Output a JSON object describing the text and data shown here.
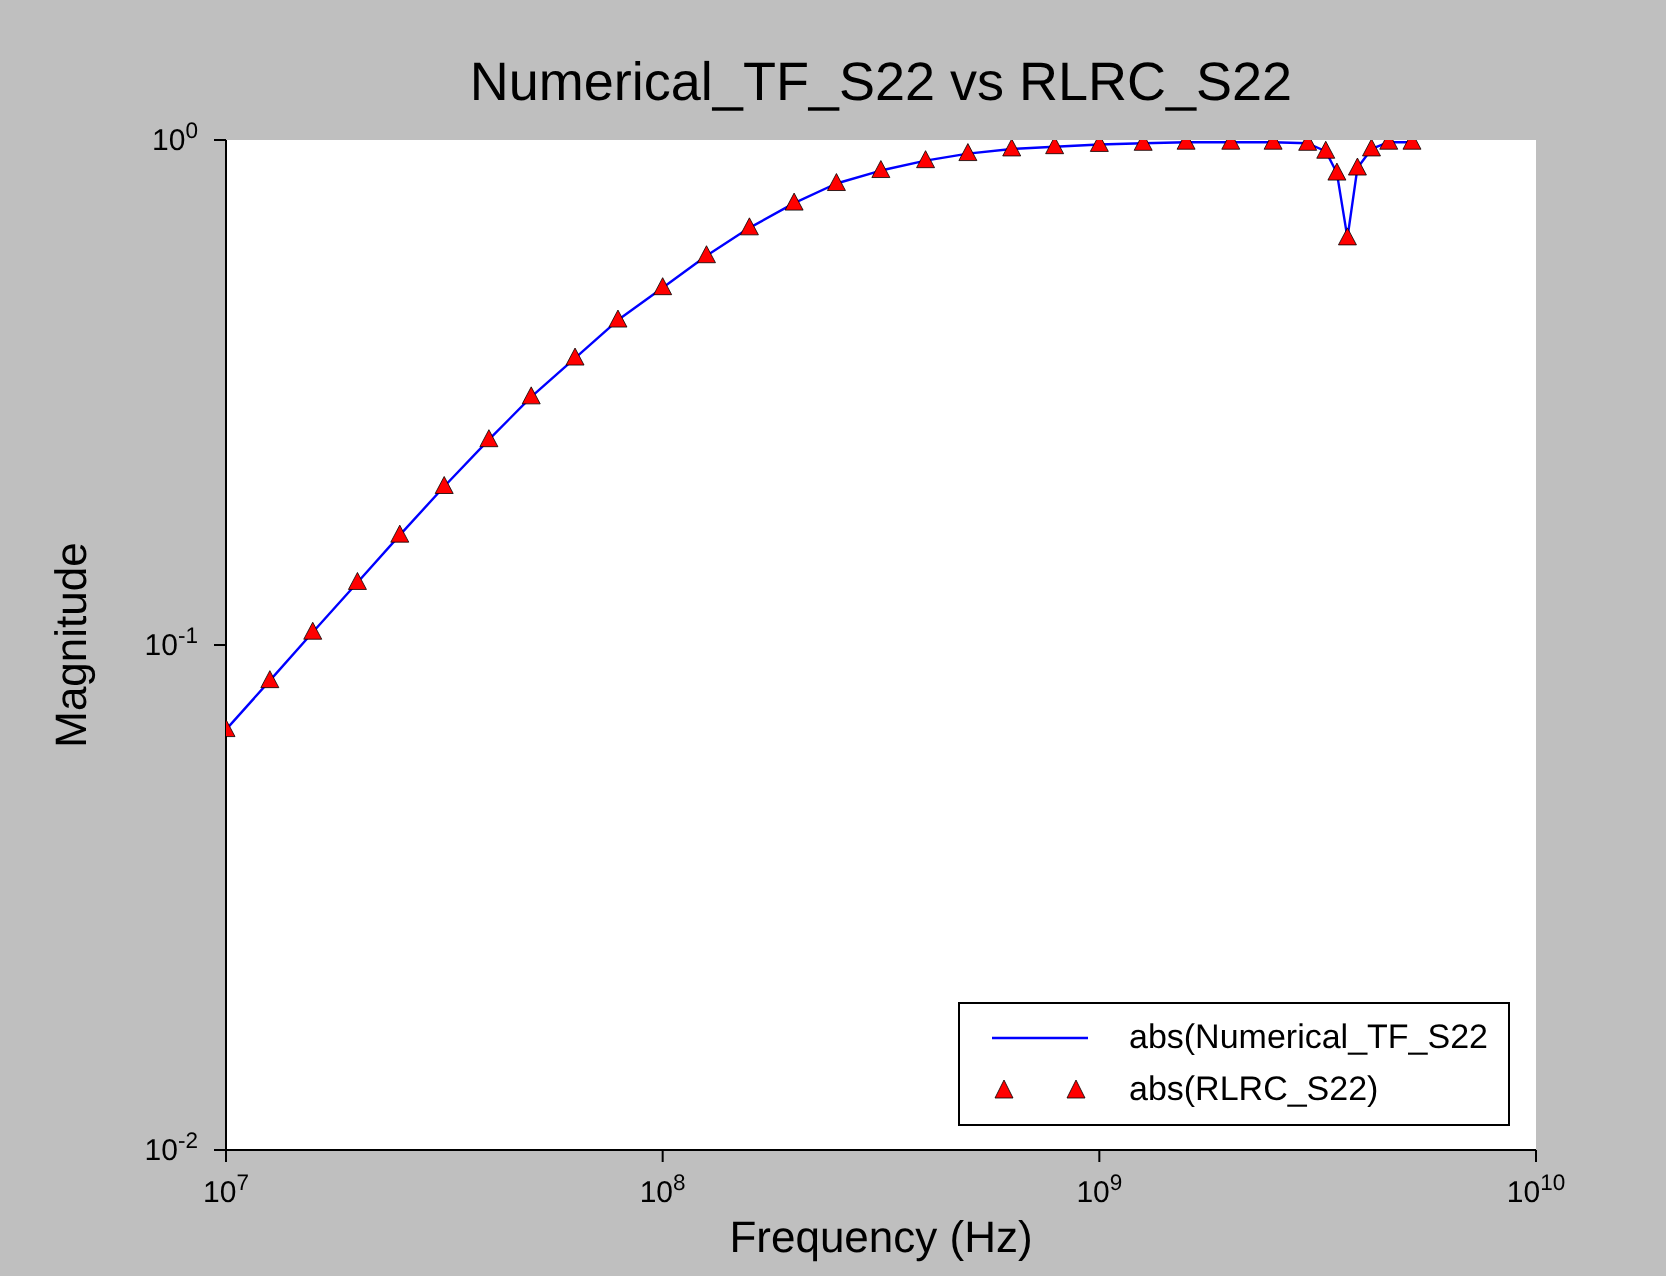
{
  "chart_data": {
    "type": "line",
    "title": "Numerical_TF_S22 vs RLRC_S22",
    "xlabel": "Frequency (Hz)",
    "ylabel": "Magnitude",
    "x": [
      10000000.0,
      12600000.0,
      15800000.0,
      20000000.0,
      25000000.0,
      31600000.0,
      40000000.0,
      50000000.0,
      63000000.0,
      79000000.0,
      100000000.0,
      126000000.0,
      158000000.0,
      200000000.0,
      250000000.0,
      316000000.0,
      400000000.0,
      500000000.0,
      630000000.0,
      790000000.0,
      1000000000.0,
      1260000000.0,
      1580000000.0,
      2000000000.0,
      2500000000.0,
      3000000000.0,
      3300000000.0,
      3500000000.0,
      3700000000.0,
      3900000000.0,
      4200000000.0,
      4600000000.0,
      5200000000.0
    ],
    "series": [
      {
        "name": "abs(Numerical_TF_S22",
        "color": "#0000ff",
        "marker": "none",
        "values": [
          0.068,
          0.085,
          0.106,
          0.133,
          0.165,
          0.206,
          0.255,
          0.31,
          0.37,
          0.44,
          0.51,
          0.59,
          0.67,
          0.75,
          0.82,
          0.87,
          0.91,
          0.94,
          0.96,
          0.97,
          0.98,
          0.985,
          0.99,
          0.99,
          0.99,
          0.985,
          0.95,
          0.86,
          0.64,
          0.88,
          0.96,
          0.99,
          0.99
        ]
      },
      {
        "name": "abs(RLRC_S22)",
        "type": "scatter",
        "color": "#ff0000",
        "marker": "triangle",
        "values": [
          0.068,
          0.085,
          0.106,
          0.133,
          0.165,
          0.206,
          0.255,
          0.31,
          0.37,
          0.44,
          0.51,
          0.59,
          0.67,
          0.75,
          0.82,
          0.87,
          0.91,
          0.94,
          0.96,
          0.97,
          0.98,
          0.985,
          0.99,
          0.99,
          0.99,
          0.985,
          0.95,
          0.86,
          0.64,
          0.88,
          0.96,
          0.99,
          0.99
        ]
      }
    ],
    "log": "xy",
    "xlim": [
      10000000.0,
      10000000000.0
    ],
    "ylim": [
      0.01,
      1
    ],
    "xticks": [
      {
        "value": 10000000.0,
        "label": "10$^{7}$"
      },
      {
        "value": 100000000.0,
        "label": "10$^{8}$"
      },
      {
        "value": 1000000000.0,
        "label": "10$^{9}$"
      },
      {
        "value": 10000000000.0,
        "label": "10$^{10}$"
      }
    ],
    "yticks": [
      {
        "value": 0.01,
        "label": "10$^{-2}$"
      },
      {
        "value": 0.1,
        "label": "10$^{-1}$"
      },
      {
        "value": 1,
        "label": "10$^{0}$"
      }
    ],
    "grid": false,
    "legend": "bottom right"
  }
}
